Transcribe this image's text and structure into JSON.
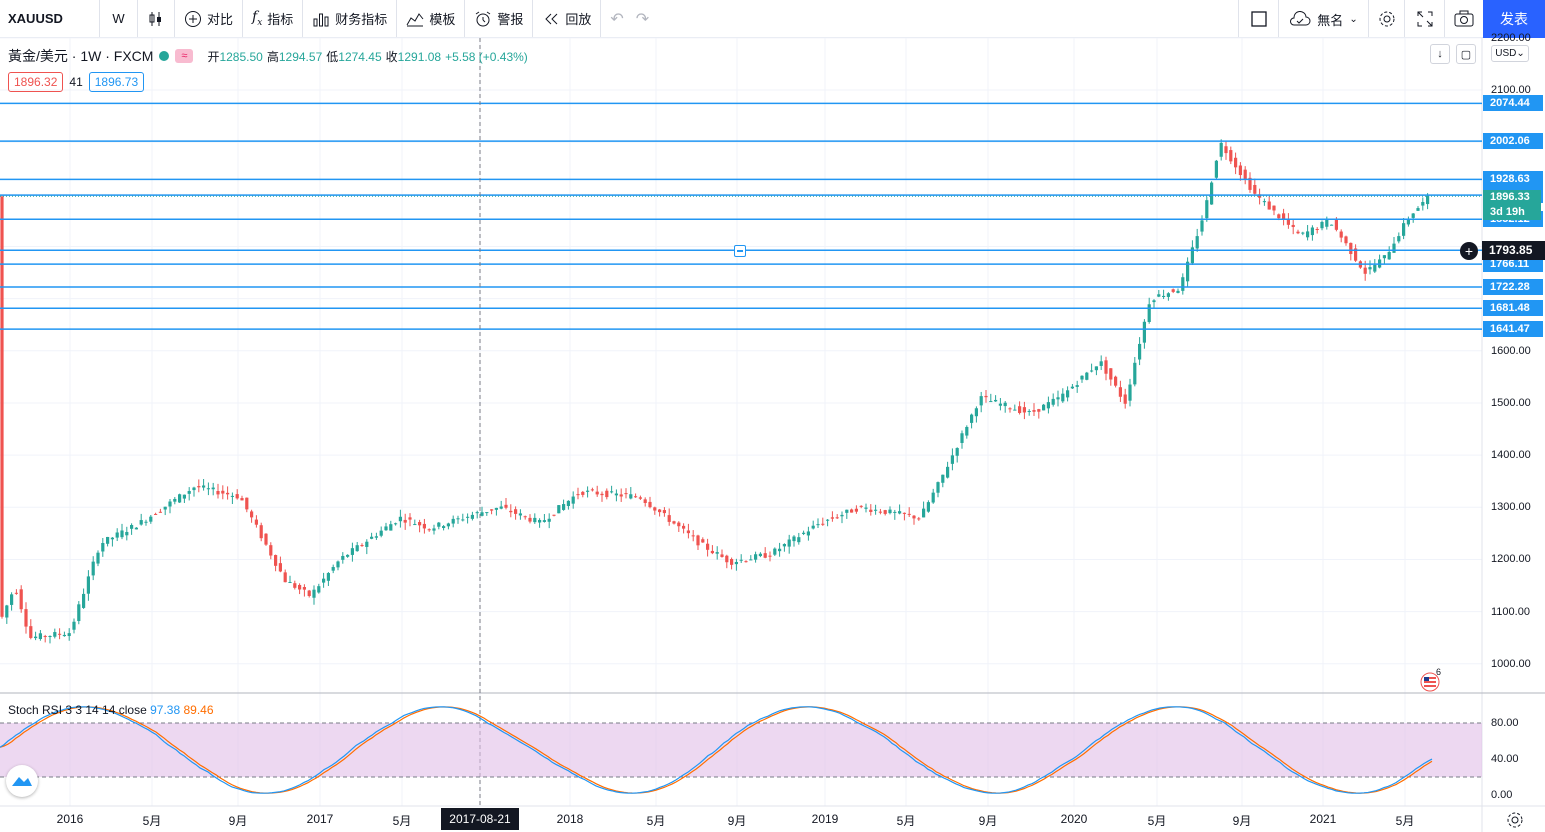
{
  "toolbar": {
    "symbol": "XAUUSD",
    "interval": "W",
    "compare": "对比",
    "indicators": "指标",
    "financials": "财务指标",
    "templates": "模板",
    "alert": "警报",
    "replay": "回放",
    "layout_name": "無名",
    "publish": "发表"
  },
  "legend": {
    "title": "黃金/美元 · 1W · FXCM",
    "ohlc": [
      {
        "label": "开",
        "value": "1285.50"
      },
      {
        "label": "高",
        "value": "1294.57"
      },
      {
        "label": "低",
        "value": "1274.45"
      },
      {
        "label": "收",
        "value": "1291.08"
      }
    ],
    "change": "+5.58 (+0.43%)",
    "bid": "1896.32",
    "spread": "41",
    "ask": "1896.73"
  },
  "price_axis": {
    "currency": "USD",
    "labels": [
      {
        "price": 2200,
        "text": "2200.00"
      },
      {
        "price": 2100,
        "text": "2100.00"
      },
      {
        "price": 1600,
        "text": "1600.00"
      },
      {
        "price": 1500,
        "text": "1500.00"
      },
      {
        "price": 1400,
        "text": "1400.00"
      },
      {
        "price": 1300,
        "text": "1300.00"
      },
      {
        "price": 1200,
        "text": "1200.00"
      },
      {
        "price": 1100,
        "text": "1100.00"
      },
      {
        "price": 1000,
        "text": "1000.00"
      }
    ],
    "horizontal_lines": [
      {
        "price": 2074.44,
        "text": "2074.44"
      },
      {
        "price": 2002.06,
        "text": "2002.06"
      },
      {
        "price": 1928.63,
        "text": "1928.63"
      },
      {
        "price": 1898.49,
        "text": "1898.49"
      },
      {
        "price": 1852.12,
        "text": "1852.12"
      },
      {
        "price": 1792.8,
        "text": "1792.80"
      },
      {
        "price": 1766.11,
        "text": "1766.11"
      },
      {
        "price": 1722.28,
        "text": "1722.28"
      },
      {
        "price": 1681.48,
        "text": "1681.48"
      },
      {
        "price": 1641.47,
        "text": "1641.47"
      }
    ],
    "current_price": "1896.33",
    "countdown": "3d 19h",
    "crosshair_price": "1793.85"
  },
  "stoch": {
    "label": "Stoch RSI 3 3 14 14 close",
    "k": "97.38",
    "d": "89.46",
    "levels": [
      {
        "v": 80,
        "text": "80.00"
      },
      {
        "v": 40,
        "text": "40.00"
      },
      {
        "v": 0,
        "text": "0.00"
      }
    ],
    "k_color": "#2196f3",
    "d_color": "#ff6d00"
  },
  "time_axis": {
    "labels": [
      "2016",
      "5月",
      "9月",
      "2017",
      "5月",
      "2017-08-21",
      "2018",
      "5月",
      "9月",
      "2019",
      "5月",
      "9月",
      "2020",
      "5月",
      "9月",
      "2021",
      "5月"
    ],
    "crosshair_date": "2017-08-21"
  },
  "events": {
    "count": "6"
  },
  "colors": {
    "up": "#26a69a",
    "down": "#ef5350",
    "line": "#2196f3",
    "accent": "#2962ff"
  }
}
